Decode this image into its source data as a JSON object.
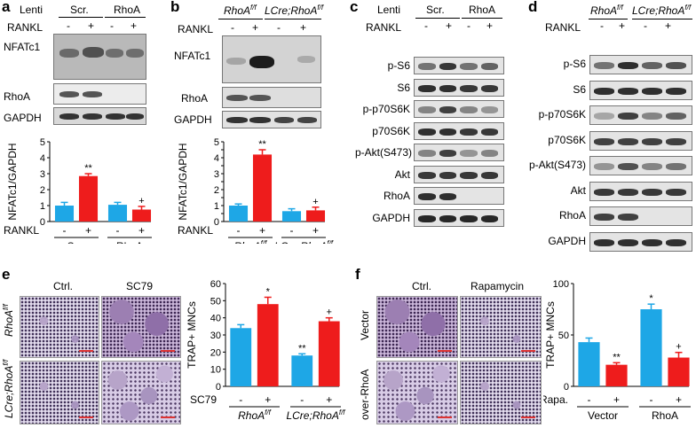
{
  "panels": {
    "a": {
      "letter": "a",
      "lenti_label": "Lenti",
      "groups": [
        "Scr.",
        "RhoA"
      ],
      "rankl_label": "RANKL",
      "signs": [
        "-",
        "+",
        "-",
        "+"
      ],
      "rows": [
        "NFATc1",
        "RhoA",
        "GAPDH"
      ]
    },
    "b": {
      "letter": "b",
      "groups": [
        "RhoA",
        "LCre;RhoA"
      ],
      "group_sup": "f/f",
      "rankl_label": "RANKL",
      "signs": [
        "-",
        "+",
        "-",
        "+"
      ],
      "rows": [
        "NFATc1",
        "RhoA",
        "GAPDH"
      ]
    },
    "c": {
      "letter": "c",
      "lenti_label": "Lenti",
      "groups": [
        "Scr.",
        "RhoA"
      ],
      "rankl_label": "RANKL",
      "signs": [
        "-",
        "+",
        "-",
        "+"
      ],
      "rows": [
        "p-S6",
        "S6",
        "p-p70S6K",
        "p70S6K",
        "p-Akt(S473)",
        "Akt",
        "RhoA",
        "GAPDH"
      ]
    },
    "d": {
      "letter": "d",
      "groups": [
        "RhoA",
        "LCre;RhoA"
      ],
      "group_sup": "f/f",
      "rankl_label": "RANKL",
      "signs": [
        "-",
        "+",
        "-",
        "+"
      ],
      "rows": [
        "p-S6",
        "S6",
        "p-p70S6K",
        "p70S6K",
        "p-Akt(S473)",
        "Akt",
        "RhoA",
        "GAPDH"
      ]
    },
    "e": {
      "letter": "e",
      "col_labels": [
        "Ctrl.",
        "SC79"
      ],
      "row_labels": [
        "RhoA",
        "LCre;RhoA"
      ],
      "row_sup": "f/f",
      "treatment_label": "SC79"
    },
    "f": {
      "letter": "f",
      "col_labels": [
        "Ctrl.",
        "Rapamycin"
      ],
      "row_labels": [
        "Vector",
        "over-RhoA"
      ],
      "treatment_label": "Rapa."
    }
  },
  "colors": {
    "blue": "#1ea7e6",
    "red": "#ee1c1c"
  },
  "chart_data": [
    {
      "type": "bar",
      "panel": "a",
      "ylabel": "NFATc1/GAPDH",
      "ylim": [
        0,
        5
      ],
      "yticks": [
        0,
        1,
        2,
        3,
        4,
        5
      ],
      "row_label": "RANKL",
      "signs": [
        "-",
        "+",
        "-",
        "+"
      ],
      "groups": [
        "Scr.",
        "RhoA"
      ],
      "values": [
        1.0,
        2.85,
        1.05,
        0.75
      ],
      "errors": [
        0.2,
        0.15,
        0.15,
        0.2
      ],
      "colors": [
        "blue",
        "red",
        "blue",
        "red"
      ],
      "annotations": [
        "",
        "**",
        "",
        "+"
      ]
    },
    {
      "type": "bar",
      "panel": "b",
      "ylabel": "NFATc1/GAPDH",
      "ylim": [
        0,
        5
      ],
      "yticks": [
        0,
        0.5,
        1,
        1.5,
        2,
        2.5,
        3,
        3.5,
        4,
        4.5,
        5
      ],
      "yticklabels": [
        "0",
        "",
        "1",
        "",
        "2",
        "",
        "3",
        "",
        "4",
        "",
        "5"
      ],
      "row_label": "RANKL",
      "signs": [
        "-",
        "+",
        "-",
        "+"
      ],
      "groups": [
        "RhoA",
        "LCre;RhoA"
      ],
      "group_sup": "f/f",
      "values": [
        1.0,
        4.2,
        0.65,
        0.7
      ],
      "errors": [
        0.1,
        0.3,
        0.15,
        0.2
      ],
      "colors": [
        "blue",
        "red",
        "blue",
        "red"
      ],
      "annotations": [
        "",
        "**",
        "",
        "+"
      ]
    },
    {
      "type": "bar",
      "panel": "e",
      "ylabel": "TRAP+ MNCs",
      "ylim": [
        0,
        60
      ],
      "yticks": [
        0,
        10,
        20,
        30,
        40,
        50,
        60
      ],
      "row_label": "SC79",
      "signs": [
        "-",
        "+",
        "-",
        "+"
      ],
      "groups": [
        "RhoA",
        "LCre;RhoA"
      ],
      "group_sup": "f/f",
      "values": [
        34,
        48,
        18,
        38
      ],
      "errors": [
        2,
        4,
        1,
        2
      ],
      "colors": [
        "blue",
        "red",
        "blue",
        "red"
      ],
      "annotations": [
        "",
        "*",
        "**",
        "+"
      ]
    },
    {
      "type": "bar",
      "panel": "f",
      "ylabel": "TRAP+ MNCs",
      "ylim": [
        0,
        100
      ],
      "yticks": [
        0,
        50,
        100
      ],
      "row_label": "Rapa.",
      "signs": [
        "-",
        "+",
        "-",
        "+"
      ],
      "groups": [
        "Vector",
        "RhoA"
      ],
      "values": [
        43,
        21,
        75,
        28
      ],
      "errors": [
        4,
        2,
        5,
        5
      ],
      "colors": [
        "blue",
        "red",
        "blue",
        "red"
      ],
      "annotations": [
        "",
        "**",
        "*",
        "+"
      ]
    }
  ]
}
